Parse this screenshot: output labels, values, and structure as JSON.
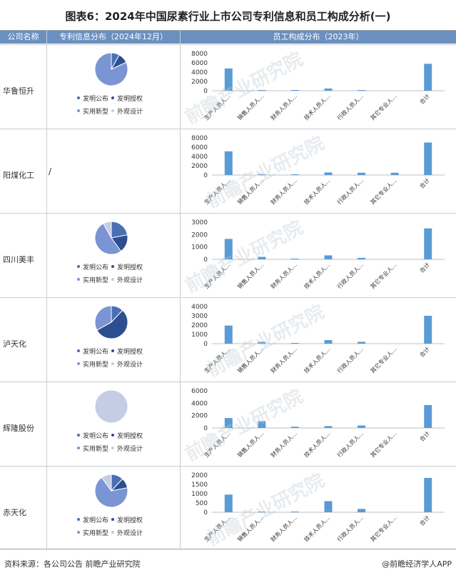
{
  "title": "图表6：2024年中国尿素行业上市公司专利信息和员工构成分析(一)",
  "headers": {
    "company": "公司名称",
    "patent": "专利信息分布（2024年12月）",
    "staff": "员工构成分布（2023年）"
  },
  "legend": [
    "发明公布",
    "发明授权",
    "实用新型",
    "外观设计"
  ],
  "colors": {
    "header_bg": "#6b8fbf",
    "bar": "#5b9bd5",
    "pie_pub": "#4a6fb5",
    "pie_grant": "#2e4f8f",
    "pie_utility": "#7b94d3",
    "pie_design": "#c5cde6"
  },
  "no_patent_mark": "/",
  "watermark": "前瞻产业研究院",
  "footer": {
    "source": "资料来源：各公司公告 前瞻产业研究院",
    "brand": "@前瞻经济学人APP"
  },
  "chart_data": [
    {
      "company": "华鲁恒升",
      "pie": {
        "type": "pie",
        "labels": [
          "发明公布",
          "发明授权",
          "实用新型",
          "外观设计"
        ],
        "values": [
          8,
          10,
          82,
          0
        ]
      },
      "bar": {
        "type": "bar",
        "categories": [
          "生产人员人...",
          "销售人员人...",
          "财务人员人...",
          "技术人员人...",
          "行政人员人...",
          "其它专业人...",
          "合计"
        ],
        "values": [
          4800,
          80,
          40,
          480,
          60,
          0,
          5800
        ],
        "ylim": [
          0,
          8000
        ],
        "yticks": [
          0,
          2000,
          4000,
          6000,
          8000
        ]
      }
    },
    {
      "company": "阳煤化工",
      "pie": null,
      "bar": {
        "type": "bar",
        "categories": [
          "生产人员人...",
          "销售人员人...",
          "财务人员人...",
          "技术人员人...",
          "行政人员人...",
          "其它专业人...",
          "合计"
        ],
        "values": [
          5100,
          200,
          150,
          550,
          500,
          500,
          7000
        ],
        "ylim": [
          0,
          8000
        ],
        "yticks": [
          0,
          2000,
          4000,
          6000,
          8000
        ]
      }
    },
    {
      "company": "四川美丰",
      "pie": {
        "type": "pie",
        "labels": [
          "发明公布",
          "发明授权",
          "实用新型",
          "外观设计"
        ],
        "values": [
          22,
          18,
          52,
          8
        ]
      },
      "bar": {
        "type": "bar",
        "categories": [
          "生产人员人...",
          "销售人员人...",
          "财务人员人...",
          "技术人员人...",
          "行政人员人...",
          "其它专业人...",
          "合计"
        ],
        "values": [
          1650,
          200,
          60,
          320,
          120,
          0,
          2500
        ],
        "ylim": [
          0,
          3000
        ],
        "yticks": [
          0,
          1000,
          2000,
          3000
        ]
      }
    },
    {
      "company": "泸天化",
      "pie": {
        "type": "pie",
        "labels": [
          "发明公布",
          "发明授权",
          "实用新型",
          "外观设计"
        ],
        "values": [
          12,
          55,
          33,
          0
        ]
      },
      "bar": {
        "type": "bar",
        "categories": [
          "生产人员人...",
          "销售人员人...",
          "财务人员人...",
          "技术人员人...",
          "行政人员人...",
          "其它专业人...",
          "合计"
        ],
        "values": [
          1950,
          200,
          30,
          380,
          200,
          0,
          3000
        ],
        "ylim": [
          0,
          4000
        ],
        "yticks": [
          0,
          1000,
          2000,
          3000,
          4000
        ]
      }
    },
    {
      "company": "辉隆股份",
      "pie": {
        "type": "pie",
        "labels": [
          "发明公布",
          "发明授权",
          "实用新型",
          "外观设计"
        ],
        "values": [
          0,
          0,
          0,
          100
        ]
      },
      "bar": {
        "type": "bar",
        "categories": [
          "生产人员人...",
          "销售人员人...",
          "财务人员人...",
          "技术人员人...",
          "行政人员人...",
          "其它专业人...",
          "合计"
        ],
        "values": [
          1600,
          1100,
          200,
          300,
          400,
          0,
          3700
        ],
        "ylim": [
          0,
          6000
        ],
        "yticks": [
          0,
          2000,
          4000,
          6000
        ]
      }
    },
    {
      "company": "赤天化",
      "pie": {
        "type": "pie",
        "labels": [
          "发明公布",
          "发明授权",
          "实用新型",
          "外观设计"
        ],
        "values": [
          12,
          10,
          68,
          10
        ]
      },
      "bar": {
        "type": "bar",
        "categories": [
          "生产人员人...",
          "销售人员人...",
          "财务人员人...",
          "技术人员人...",
          "行政人员人...",
          "其它专业人...",
          "合计"
        ],
        "values": [
          950,
          20,
          20,
          600,
          180,
          0,
          1850
        ],
        "ylim": [
          0,
          2000
        ],
        "yticks": [
          0,
          500,
          1000,
          1500,
          2000
        ]
      }
    }
  ]
}
